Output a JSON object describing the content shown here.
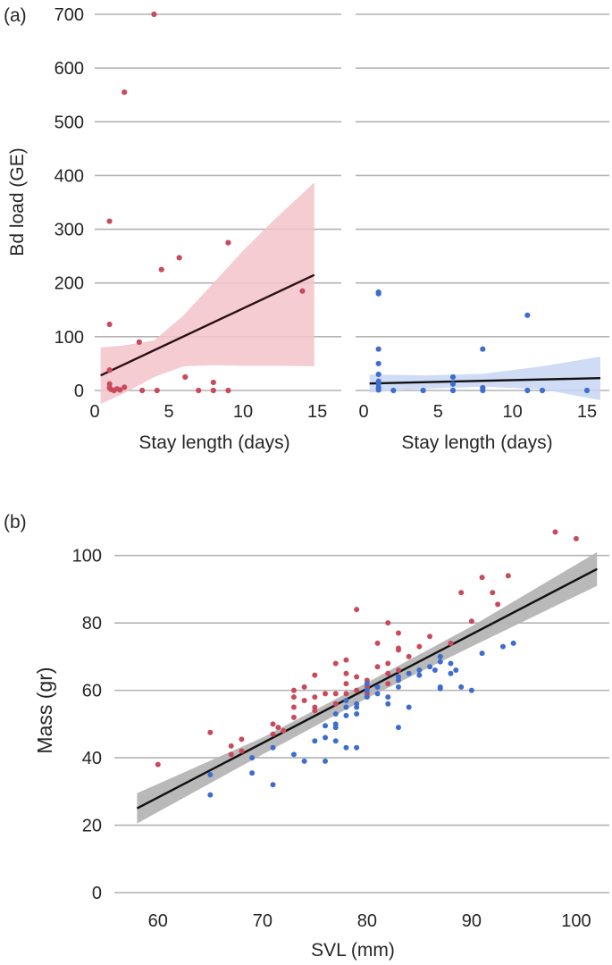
{
  "figure": {
    "panel_a_label": "(a)",
    "panel_b_label": "(b)"
  },
  "colors": {
    "red": "#c94a5c",
    "blue": "#3e6dce",
    "red_band": "#f2c3c9",
    "blue_band": "#c8d6f3",
    "black": "#111111",
    "dark_line": "#2a0f14",
    "gray_band": "#b5b5b5",
    "grid": "#b3b3b3"
  },
  "chart_data": [
    {
      "id": "a_left",
      "type": "scatter",
      "title": "",
      "xlabel": "Stay length (days)",
      "ylabel": "Bd load (GE)",
      "xlim": [
        0,
        16.5
      ],
      "ylim": [
        0,
        700
      ],
      "xticks": [
        0,
        5,
        10,
        15
      ],
      "yticks": [
        0,
        100,
        200,
        300,
        400,
        500,
        600,
        700
      ],
      "grid": true,
      "series": [
        {
          "name": "red",
          "color": "#c94a5c",
          "points": [
            [
              4,
              700
            ],
            [
              2,
              555
            ],
            [
              1,
              315
            ],
            [
              9,
              275
            ],
            [
              5.7,
              247
            ],
            [
              4.5,
              225
            ],
            [
              14,
              185
            ],
            [
              1,
              123
            ],
            [
              3,
              90
            ],
            [
              1,
              38
            ],
            [
              6.1,
              25
            ],
            [
              8,
              15
            ],
            [
              1,
              12
            ],
            [
              1,
              5
            ],
            [
              1.1,
              2
            ],
            [
              1.3,
              0
            ],
            [
              1.5,
              3
            ],
            [
              1.7,
              1
            ],
            [
              2,
              6
            ],
            [
              3.2,
              0
            ],
            [
              4.2,
              0
            ],
            [
              7,
              0
            ],
            [
              8,
              0
            ],
            [
              9,
              0
            ]
          ]
        }
      ],
      "fit": {
        "x": [
          0.4,
          14.8
        ],
        "y": [
          28,
          215
        ],
        "color": "#2a0f14"
      },
      "band": {
        "x": [
          0.4,
          2,
          4,
          6,
          8,
          10,
          12,
          14.8
        ],
        "upper": [
          80,
          84,
          93,
          140,
          200,
          260,
          315,
          387
        ],
        "lower": [
          -25,
          -5,
          25,
          45,
          47,
          46,
          46,
          45
        ],
        "color": "#f2c3c9"
      }
    },
    {
      "id": "a_right",
      "type": "scatter",
      "title": "",
      "xlabel": "Stay length (days)",
      "ylabel": "",
      "xlim": [
        0,
        16.5
      ],
      "ylim": [
        0,
        700
      ],
      "xticks": [
        0,
        5,
        10,
        15
      ],
      "yticks": [
        0,
        100,
        200,
        300,
        400,
        500,
        600,
        700
      ],
      "grid": true,
      "series": [
        {
          "name": "blue",
          "color": "#3e6dce",
          "points": [
            [
              1,
              183
            ],
            [
              1,
              180
            ],
            [
              11,
              140
            ],
            [
              1,
              77
            ],
            [
              8,
              77
            ],
            [
              1,
              50
            ],
            [
              1,
              30
            ],
            [
              6,
              25
            ],
            [
              1,
              17
            ],
            [
              1,
              12
            ],
            [
              6,
              12
            ],
            [
              1,
              5
            ],
            [
              8,
              5
            ],
            [
              1,
              1
            ],
            [
              2,
              0
            ],
            [
              4,
              0
            ],
            [
              6,
              0
            ],
            [
              8,
              0
            ],
            [
              11,
              0
            ],
            [
              12,
              0
            ],
            [
              15,
              0
            ]
          ]
        }
      ],
      "fit": {
        "x": [
          0.4,
          15.9
        ],
        "y": [
          13,
          23
        ],
        "color": "#111111"
      },
      "band": {
        "x": [
          0.4,
          4,
          8,
          12,
          15.9
        ],
        "upper": [
          30,
          28,
          31,
          45,
          63
        ],
        "lower": [
          -4,
          3,
          7,
          2,
          -18
        ],
        "color": "#c8d6f3"
      }
    },
    {
      "id": "b",
      "type": "scatter",
      "title": "",
      "xlabel": "SVL (mm)",
      "ylabel": "Mass (gr)",
      "xlim": [
        56,
        103
      ],
      "ylim": [
        0,
        110
      ],
      "xticks": [
        60,
        70,
        80,
        90,
        100
      ],
      "yticks": [
        0,
        20,
        40,
        60,
        80,
        100
      ],
      "grid": true,
      "series": [
        {
          "name": "red",
          "color": "#c94a5c",
          "points": [
            [
              60,
              38
            ],
            [
              65,
              47.5
            ],
            [
              67,
              41
            ],
            [
              67,
              43.5
            ],
            [
              68,
              42
            ],
            [
              68,
              45.5
            ],
            [
              71,
              50
            ],
            [
              71,
              47
            ],
            [
              71.5,
              49
            ],
            [
              72,
              48
            ],
            [
              73,
              60
            ],
            [
              73,
              58
            ],
            [
              73,
              55
            ],
            [
              73,
              52
            ],
            [
              74,
              61
            ],
            [
              74,
              57
            ],
            [
              75,
              64.5
            ],
            [
              75,
              58
            ],
            [
              75,
              55
            ],
            [
              75,
              54
            ],
            [
              76,
              59
            ],
            [
              77,
              68
            ],
            [
              77,
              59
            ],
            [
              77,
              56
            ],
            [
              78,
              69
            ],
            [
              78,
              65
            ],
            [
              78,
              62
            ],
            [
              78,
              59
            ],
            [
              79,
              84
            ],
            [
              79,
              64
            ],
            [
              79,
              60
            ],
            [
              80,
              63
            ],
            [
              80,
              61
            ],
            [
              80,
              59
            ],
            [
              81,
              74
            ],
            [
              81,
              67
            ],
            [
              81,
              61
            ],
            [
              82,
              80
            ],
            [
              82,
              68
            ],
            [
              82,
              65
            ],
            [
              82,
              62
            ],
            [
              83,
              77
            ],
            [
              83,
              72.5
            ],
            [
              83,
              72
            ],
            [
              83,
              66
            ],
            [
              84,
              70
            ],
            [
              85,
              73
            ],
            [
              86,
              76
            ],
            [
              88,
              74
            ],
            [
              89,
              89
            ],
            [
              90,
              80.5
            ],
            [
              91,
              93.5
            ],
            [
              92,
              89
            ],
            [
              92.5,
              85.5
            ],
            [
              93.5,
              94
            ],
            [
              98,
              107
            ],
            [
              100,
              105
            ]
          ]
        },
        {
          "name": "blue",
          "color": "#3e6dce",
          "points": [
            [
              65,
              29
            ],
            [
              65,
              35
            ],
            [
              69,
              40
            ],
            [
              69,
              35.5
            ],
            [
              71,
              43
            ],
            [
              71,
              32
            ],
            [
              73,
              41
            ],
            [
              74,
              39
            ],
            [
              75,
              45
            ],
            [
              76,
              49.5
            ],
            [
              76,
              46
            ],
            [
              76,
              39
            ],
            [
              77,
              53
            ],
            [
              77,
              50
            ],
            [
              77,
              49
            ],
            [
              77,
              45
            ],
            [
              78,
              57
            ],
            [
              78,
              55
            ],
            [
              78,
              52.5
            ],
            [
              78,
              43
            ],
            [
              79,
              56
            ],
            [
              79,
              55
            ],
            [
              79,
              53
            ],
            [
              79,
              43
            ],
            [
              80,
              62
            ],
            [
              80,
              60
            ],
            [
              80,
              58
            ],
            [
              81,
              61
            ],
            [
              81,
              59
            ],
            [
              82,
              58
            ],
            [
              82,
              56
            ],
            [
              83,
              64
            ],
            [
              83,
              63
            ],
            [
              83,
              61
            ],
            [
              83,
              49
            ],
            [
              84,
              65
            ],
            [
              84,
              55
            ],
            [
              85,
              66
            ],
            [
              85,
              64.5
            ],
            [
              86,
              67
            ],
            [
              86.5,
              66
            ],
            [
              87,
              70
            ],
            [
              87,
              68.5
            ],
            [
              87,
              61
            ],
            [
              87,
              60.5
            ],
            [
              88,
              68
            ],
            [
              88,
              65
            ],
            [
              88.5,
              66
            ],
            [
              89,
              61
            ],
            [
              90,
              60
            ],
            [
              91,
              71
            ],
            [
              93,
              73
            ],
            [
              94,
              74
            ]
          ]
        }
      ],
      "fit": {
        "x": [
          58,
          102
        ],
        "y": [
          25,
          96
        ],
        "color": "#111111"
      },
      "band": {
        "x": [
          58,
          70,
          80,
          90,
          102
        ],
        "upper": [
          29.5,
          46,
          62.3,
          79,
          101
        ],
        "lower": [
          20.5,
          41,
          57.7,
          73,
          91
        ],
        "color": "#b5b5b5"
      }
    }
  ]
}
